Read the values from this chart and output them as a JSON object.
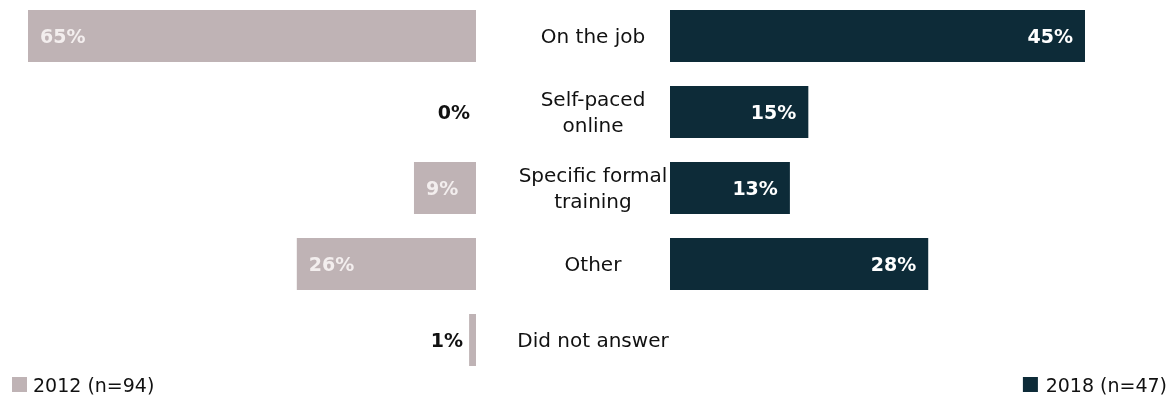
{
  "chart_data": [
    {
      "type": "bar",
      "orientation": "horizontal",
      "categories": [
        "On the job",
        "Self-paced online",
        "Specific formal training",
        "Other",
        "Did not answer"
      ],
      "series": [
        {
          "name": "2012 (n=94)",
          "color": "#bfb3b5",
          "values": [
            65,
            0,
            9,
            26,
            1
          ],
          "value_labels": [
            "65%",
            "0%",
            "9%",
            "26%",
            "1%"
          ]
        }
      ],
      "legend": "bottom left"
    },
    {
      "type": "bar",
      "orientation": "horizontal",
      "categories": [
        null,
        null,
        null,
        null
      ],
      "series": [
        {
          "name": "2018 (n=47)",
          "color": "#0d2b38",
          "values": [
            45,
            15,
            13,
            28
          ],
          "value_labels": [
            "45%",
            "15%",
            "13%",
            "28%"
          ]
        }
      ],
      "legend": "bottom right"
    }
  ]
}
